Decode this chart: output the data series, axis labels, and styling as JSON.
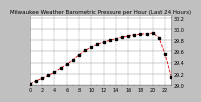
{
  "title": "Milwaukee Weather Barometric Pressure per Hour (Last 24 Hours)",
  "bg_color": "#c0c0c0",
  "plot_bg_color": "#ffffff",
  "grid_color": "#888888",
  "text_color": "#000000",
  "line_color": "#dd0000",
  "dot_color": "#000000",
  "xlim": [
    0,
    23
  ],
  "ylim": [
    29.0,
    30.25
  ],
  "ytick_values": [
    29.0,
    29.2,
    29.4,
    29.6,
    29.8,
    30.0,
    30.2
  ],
  "ytick_labels": [
    "29.0",
    "29.2",
    "29.4",
    "29.6",
    "29.8",
    "30.0",
    "30.2"
  ],
  "x_values": [
    0,
    1,
    2,
    3,
    4,
    5,
    6,
    7,
    8,
    9,
    10,
    11,
    12,
    13,
    14,
    15,
    16,
    17,
    18,
    19,
    20,
    21,
    22,
    23
  ],
  "y_values": [
    29.02,
    29.07,
    29.12,
    29.17,
    29.23,
    29.3,
    29.37,
    29.45,
    29.54,
    29.62,
    29.68,
    29.73,
    29.77,
    29.8,
    29.83,
    29.86,
    29.88,
    29.9,
    29.91,
    29.92,
    29.93,
    29.85,
    29.55,
    29.15
  ],
  "title_fontsize": 4.0,
  "tick_fontsize": 3.5,
  "linewidth": 0.6,
  "markersize": 1.8
}
